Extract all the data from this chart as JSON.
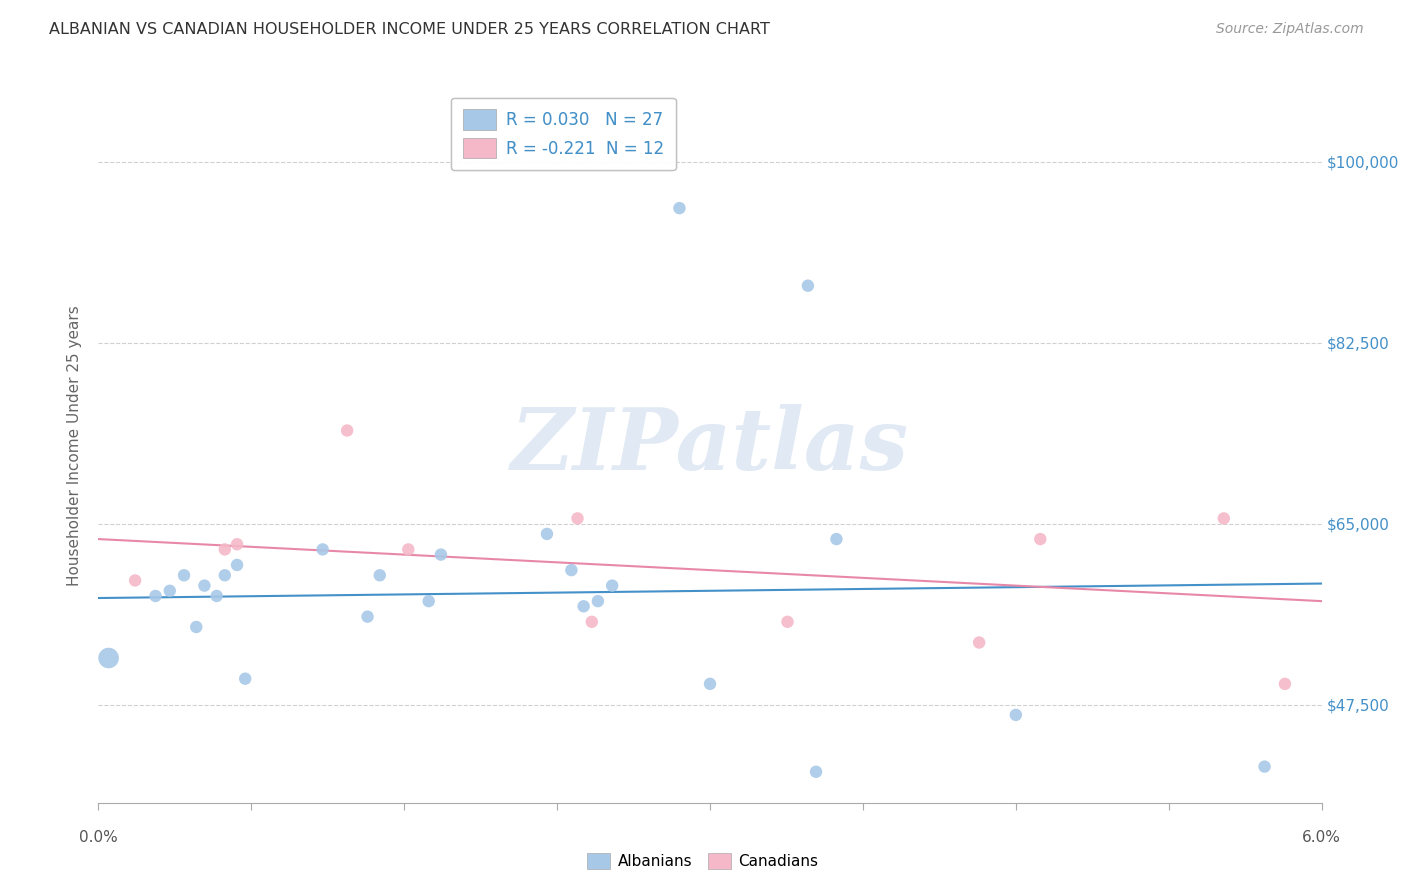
{
  "title": "ALBANIAN VS CANADIAN HOUSEHOLDER INCOME UNDER 25 YEARS CORRELATION CHART",
  "source": "Source: ZipAtlas.com",
  "ylabel": "Householder Income Under 25 years",
  "yticks": [
    47500,
    65000,
    82500,
    100000
  ],
  "ytick_labels": [
    "$47,500",
    "$65,000",
    "$82,500",
    "$100,000"
  ],
  "xlim": [
    0.0,
    6.0
  ],
  "ylim": [
    38000,
    107000
  ],
  "legend_line1": "R = 0.030   N = 27",
  "legend_line2": "R = -0.221  N = 12",
  "watermark": "ZIPatlas",
  "blue_color": "#a8c8e8",
  "pink_color": "#f4b8c8",
  "blue_line_color": "#4490c8",
  "pink_line_color": "#e888a8",
  "albanians_x": [
    0.05,
    0.28,
    0.35,
    0.42,
    0.48,
    0.52,
    0.58,
    0.62,
    0.68,
    0.72,
    1.1,
    1.32,
    1.38,
    1.62,
    1.68,
    2.2,
    2.32,
    2.38,
    2.45,
    2.52,
    2.85,
    3.0,
    3.48,
    3.52,
    3.62,
    4.5,
    5.72
  ],
  "albanians_y": [
    52000,
    58000,
    58500,
    60000,
    55000,
    59000,
    58000,
    60000,
    61000,
    50000,
    62500,
    56000,
    60000,
    57500,
    62000,
    64000,
    60500,
    57000,
    57500,
    59000,
    95500,
    49500,
    88000,
    41000,
    63500,
    46500,
    41500
  ],
  "albanians_sizes": [
    220,
    80,
    80,
    80,
    80,
    80,
    80,
    80,
    80,
    80,
    80,
    80,
    80,
    80,
    80,
    80,
    80,
    80,
    80,
    80,
    80,
    80,
    80,
    80,
    80,
    80,
    80
  ],
  "canadians_x": [
    0.18,
    0.62,
    0.68,
    1.22,
    1.52,
    2.35,
    2.42,
    3.38,
    4.32,
    4.62,
    5.52,
    5.82
  ],
  "canadians_y": [
    59500,
    62500,
    63000,
    74000,
    62500,
    65500,
    55500,
    55500,
    53500,
    63500,
    65500,
    49500
  ],
  "trendline_albanian_y0": 57800,
  "trendline_albanian_y1": 59200,
  "trendline_canadian_y0": 63500,
  "trendline_canadian_y1": 57500,
  "xtick_positions": [
    0.0,
    0.75,
    1.5,
    2.25,
    3.0,
    3.75,
    4.5,
    5.25,
    6.0
  ]
}
